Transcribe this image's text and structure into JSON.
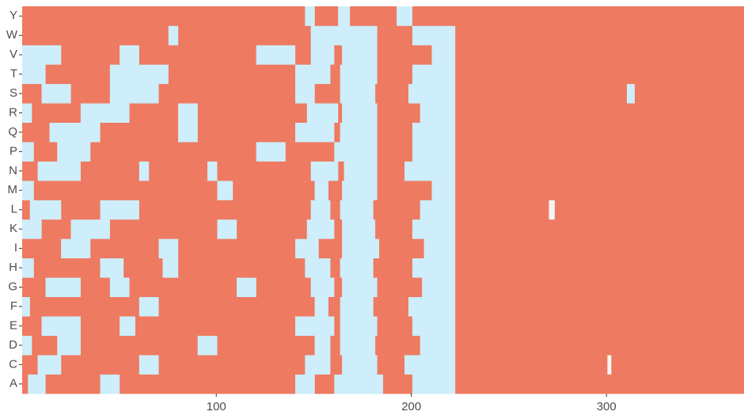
{
  "chart_data": {
    "type": "heatmap",
    "colors": {
      "0": "#cdeefa",
      "1": "#ee7a61",
      "2": "#f4f4f4"
    },
    "xlim": [
      0.5,
      370.5
    ],
    "xticks": [
      100,
      200,
      300
    ],
    "rows": [
      {
        "name": "A",
        "runs": [
          [
            1,
            3,
            1
          ],
          [
            4,
            12,
            0
          ],
          [
            13,
            40,
            1
          ],
          [
            41,
            50,
            0
          ],
          [
            51,
            140,
            1
          ],
          [
            141,
            150,
            0
          ],
          [
            151,
            160,
            1
          ],
          [
            161,
            185,
            0
          ],
          [
            186,
            200,
            1
          ],
          [
            201,
            222,
            0
          ],
          [
            223,
            370,
            1
          ]
        ]
      },
      {
        "name": "C",
        "runs": [
          [
            1,
            8,
            1
          ],
          [
            9,
            20,
            0
          ],
          [
            21,
            60,
            1
          ],
          [
            61,
            70,
            0
          ],
          [
            71,
            145,
            1
          ],
          [
            146,
            158,
            0
          ],
          [
            159,
            164,
            1
          ],
          [
            165,
            182,
            0
          ],
          [
            183,
            196,
            1
          ],
          [
            197,
            222,
            0
          ],
          [
            223,
            300,
            1
          ],
          [
            301,
            302,
            2
          ],
          [
            303,
            370,
            1
          ]
        ]
      },
      {
        "name": "D",
        "runs": [
          [
            1,
            5,
            0
          ],
          [
            6,
            18,
            1
          ],
          [
            19,
            30,
            0
          ],
          [
            31,
            90,
            1
          ],
          [
            91,
            100,
            0
          ],
          [
            101,
            150,
            1
          ],
          [
            151,
            158,
            0
          ],
          [
            159,
            163,
            1
          ],
          [
            164,
            181,
            0
          ],
          [
            182,
            204,
            1
          ],
          [
            205,
            222,
            0
          ],
          [
            223,
            370,
            1
          ]
        ]
      },
      {
        "name": "E",
        "runs": [
          [
            1,
            10,
            1
          ],
          [
            11,
            30,
            0
          ],
          [
            31,
            50,
            1
          ],
          [
            51,
            58,
            0
          ],
          [
            59,
            140,
            1
          ],
          [
            141,
            160,
            0
          ],
          [
            161,
            163,
            1
          ],
          [
            164,
            182,
            0
          ],
          [
            183,
            200,
            1
          ],
          [
            201,
            222,
            0
          ],
          [
            223,
            370,
            1
          ]
        ]
      },
      {
        "name": "F",
        "runs": [
          [
            1,
            4,
            0
          ],
          [
            5,
            60,
            1
          ],
          [
            61,
            70,
            0
          ],
          [
            71,
            150,
            1
          ],
          [
            151,
            157,
            0
          ],
          [
            158,
            163,
            1
          ],
          [
            164,
            180,
            0
          ],
          [
            181,
            198,
            1
          ],
          [
            199,
            222,
            0
          ],
          [
            223,
            370,
            1
          ]
        ]
      },
      {
        "name": "G",
        "runs": [
          [
            1,
            12,
            1
          ],
          [
            13,
            30,
            0
          ],
          [
            31,
            45,
            1
          ],
          [
            46,
            55,
            0
          ],
          [
            56,
            110,
            1
          ],
          [
            111,
            120,
            0
          ],
          [
            121,
            148,
            1
          ],
          [
            149,
            160,
            0
          ],
          [
            161,
            164,
            1
          ],
          [
            165,
            182,
            0
          ],
          [
            183,
            205,
            1
          ],
          [
            206,
            222,
            0
          ],
          [
            223,
            370,
            1
          ]
        ]
      },
      {
        "name": "H",
        "runs": [
          [
            1,
            6,
            0
          ],
          [
            7,
            40,
            1
          ],
          [
            41,
            52,
            0
          ],
          [
            53,
            72,
            1
          ],
          [
            73,
            80,
            0
          ],
          [
            81,
            145,
            1
          ],
          [
            146,
            158,
            0
          ],
          [
            159,
            163,
            1
          ],
          [
            164,
            180,
            0
          ],
          [
            181,
            200,
            1
          ],
          [
            201,
            222,
            0
          ],
          [
            223,
            370,
            1
          ]
        ]
      },
      {
        "name": "I",
        "runs": [
          [
            1,
            20,
            1
          ],
          [
            21,
            35,
            0
          ],
          [
            36,
            70,
            1
          ],
          [
            71,
            80,
            0
          ],
          [
            81,
            140,
            1
          ],
          [
            141,
            152,
            0
          ],
          [
            153,
            164,
            1
          ],
          [
            165,
            183,
            0
          ],
          [
            184,
            206,
            1
          ],
          [
            207,
            222,
            0
          ],
          [
            223,
            370,
            1
          ]
        ]
      },
      {
        "name": "K",
        "runs": [
          [
            1,
            10,
            0
          ],
          [
            11,
            25,
            1
          ],
          [
            26,
            45,
            0
          ],
          [
            46,
            100,
            1
          ],
          [
            101,
            110,
            0
          ],
          [
            111,
            146,
            1
          ],
          [
            147,
            160,
            0
          ],
          [
            161,
            164,
            1
          ],
          [
            165,
            181,
            0
          ],
          [
            182,
            200,
            1
          ],
          [
            201,
            222,
            0
          ],
          [
            223,
            370,
            1
          ]
        ]
      },
      {
        "name": "L",
        "runs": [
          [
            1,
            4,
            1
          ],
          [
            5,
            20,
            0
          ],
          [
            21,
            40,
            1
          ],
          [
            41,
            60,
            0
          ],
          [
            61,
            148,
            1
          ],
          [
            149,
            158,
            0
          ],
          [
            159,
            163,
            1
          ],
          [
            164,
            180,
            0
          ],
          [
            181,
            204,
            1
          ],
          [
            205,
            222,
            0
          ],
          [
            223,
            270,
            1
          ],
          [
            271,
            273,
            2
          ],
          [
            274,
            370,
            1
          ]
        ]
      },
      {
        "name": "M",
        "runs": [
          [
            1,
            6,
            0
          ],
          [
            7,
            100,
            1
          ],
          [
            101,
            108,
            0
          ],
          [
            109,
            150,
            1
          ],
          [
            151,
            157,
            0
          ],
          [
            158,
            164,
            1
          ],
          [
            165,
            182,
            0
          ],
          [
            183,
            210,
            1
          ],
          [
            211,
            222,
            0
          ],
          [
            223,
            370,
            1
          ]
        ]
      },
      {
        "name": "N",
        "runs": [
          [
            1,
            8,
            1
          ],
          [
            9,
            30,
            0
          ],
          [
            31,
            60,
            1
          ],
          [
            61,
            65,
            0
          ],
          [
            66,
            95,
            1
          ],
          [
            96,
            100,
            0
          ],
          [
            101,
            148,
            1
          ],
          [
            149,
            162,
            0
          ],
          [
            163,
            165,
            1
          ],
          [
            166,
            182,
            0
          ],
          [
            183,
            196,
            1
          ],
          [
            197,
            222,
            0
          ],
          [
            223,
            370,
            1
          ]
        ]
      },
      {
        "name": "P",
        "runs": [
          [
            1,
            6,
            0
          ],
          [
            7,
            18,
            1
          ],
          [
            19,
            35,
            0
          ],
          [
            36,
            120,
            1
          ],
          [
            121,
            135,
            0
          ],
          [
            136,
            160,
            1
          ],
          [
            161,
            182,
            0
          ],
          [
            183,
            200,
            1
          ],
          [
            201,
            222,
            0
          ],
          [
            223,
            370,
            1
          ]
        ]
      },
      {
        "name": "Q",
        "runs": [
          [
            1,
            14,
            1
          ],
          [
            15,
            40,
            0
          ],
          [
            41,
            80,
            1
          ],
          [
            81,
            90,
            0
          ],
          [
            91,
            140,
            1
          ],
          [
            141,
            160,
            0
          ],
          [
            161,
            163,
            1
          ],
          [
            164,
            182,
            0
          ],
          [
            183,
            200,
            1
          ],
          [
            201,
            222,
            0
          ],
          [
            223,
            370,
            1
          ]
        ]
      },
      {
        "name": "R",
        "runs": [
          [
            1,
            5,
            0
          ],
          [
            6,
            30,
            1
          ],
          [
            31,
            55,
            0
          ],
          [
            56,
            80,
            1
          ],
          [
            81,
            90,
            0
          ],
          [
            91,
            146,
            1
          ],
          [
            147,
            162,
            0
          ],
          [
            163,
            164,
            1
          ],
          [
            165,
            182,
            0
          ],
          [
            183,
            204,
            1
          ],
          [
            205,
            222,
            0
          ],
          [
            223,
            370,
            1
          ]
        ]
      },
      {
        "name": "S",
        "runs": [
          [
            1,
            10,
            1
          ],
          [
            11,
            25,
            0
          ],
          [
            26,
            45,
            1
          ],
          [
            46,
            70,
            0
          ],
          [
            71,
            140,
            1
          ],
          [
            141,
            150,
            0
          ],
          [
            151,
            163,
            1
          ],
          [
            164,
            181,
            0
          ],
          [
            182,
            198,
            1
          ],
          [
            199,
            222,
            0
          ],
          [
            223,
            310,
            1
          ],
          [
            311,
            314,
            0
          ],
          [
            315,
            370,
            1
          ]
        ]
      },
      {
        "name": "T",
        "runs": [
          [
            1,
            12,
            0
          ],
          [
            13,
            45,
            1
          ],
          [
            46,
            75,
            0
          ],
          [
            76,
            140,
            1
          ],
          [
            141,
            158,
            0
          ],
          [
            159,
            163,
            1
          ],
          [
            164,
            182,
            0
          ],
          [
            183,
            200,
            1
          ],
          [
            201,
            222,
            0
          ],
          [
            223,
            370,
            1
          ]
        ]
      },
      {
        "name": "V",
        "runs": [
          [
            1,
            20,
            0
          ],
          [
            21,
            50,
            1
          ],
          [
            51,
            60,
            0
          ],
          [
            61,
            120,
            1
          ],
          [
            121,
            140,
            0
          ],
          [
            141,
            148,
            1
          ],
          [
            149,
            160,
            0
          ],
          [
            161,
            164,
            1
          ],
          [
            165,
            182,
            0
          ],
          [
            183,
            210,
            1
          ],
          [
            211,
            222,
            0
          ],
          [
            223,
            370,
            1
          ]
        ]
      },
      {
        "name": "W",
        "runs": [
          [
            1,
            75,
            1
          ],
          [
            76,
            80,
            0
          ],
          [
            81,
            148,
            1
          ],
          [
            149,
            182,
            0
          ],
          [
            183,
            200,
            1
          ],
          [
            201,
            222,
            0
          ],
          [
            223,
            370,
            1
          ]
        ]
      },
      {
        "name": "Y",
        "runs": [
          [
            1,
            145,
            1
          ],
          [
            146,
            150,
            0
          ],
          [
            151,
            162,
            1
          ],
          [
            163,
            168,
            0
          ],
          [
            169,
            192,
            1
          ],
          [
            193,
            200,
            0
          ],
          [
            201,
            370,
            1
          ]
        ]
      }
    ]
  }
}
